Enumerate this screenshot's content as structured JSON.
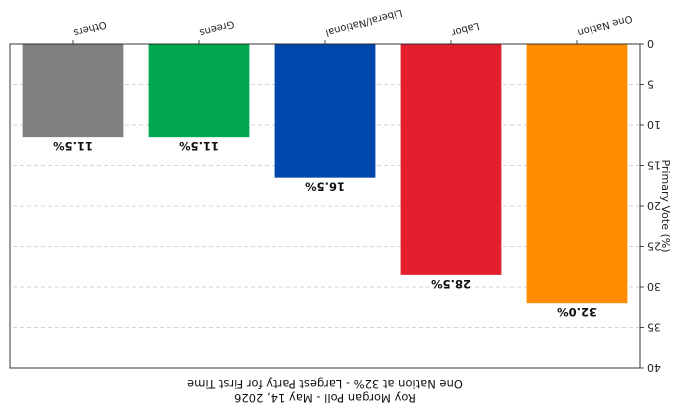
{
  "chart_data": {
    "type": "bar",
    "orientation_note": "rendered rotated 180 degrees",
    "title": [
      "Roy Morgan Poll - May 14, 2026",
      "One Nation at 32% - Largest Party for First Time"
    ],
    "ylabel": "Primary Vote (%)",
    "xlabel": "",
    "categories": [
      "One Nation",
      "Labor",
      "Liberal/National",
      "Greens",
      "Others"
    ],
    "values": [
      32.0,
      28.5,
      16.5,
      11.5,
      11.5
    ],
    "value_labels": [
      "32.0%",
      "28.5%",
      "16.5%",
      "11.5%",
      "11.5%"
    ],
    "colors": [
      "#ff8c00",
      "#e31e2d",
      "#0047ab",
      "#00a650",
      "#808080"
    ],
    "ylim": [
      0,
      40
    ],
    "yticks": [
      0,
      5,
      10,
      15,
      20,
      25,
      30,
      35,
      40
    ],
    "grid": true
  }
}
